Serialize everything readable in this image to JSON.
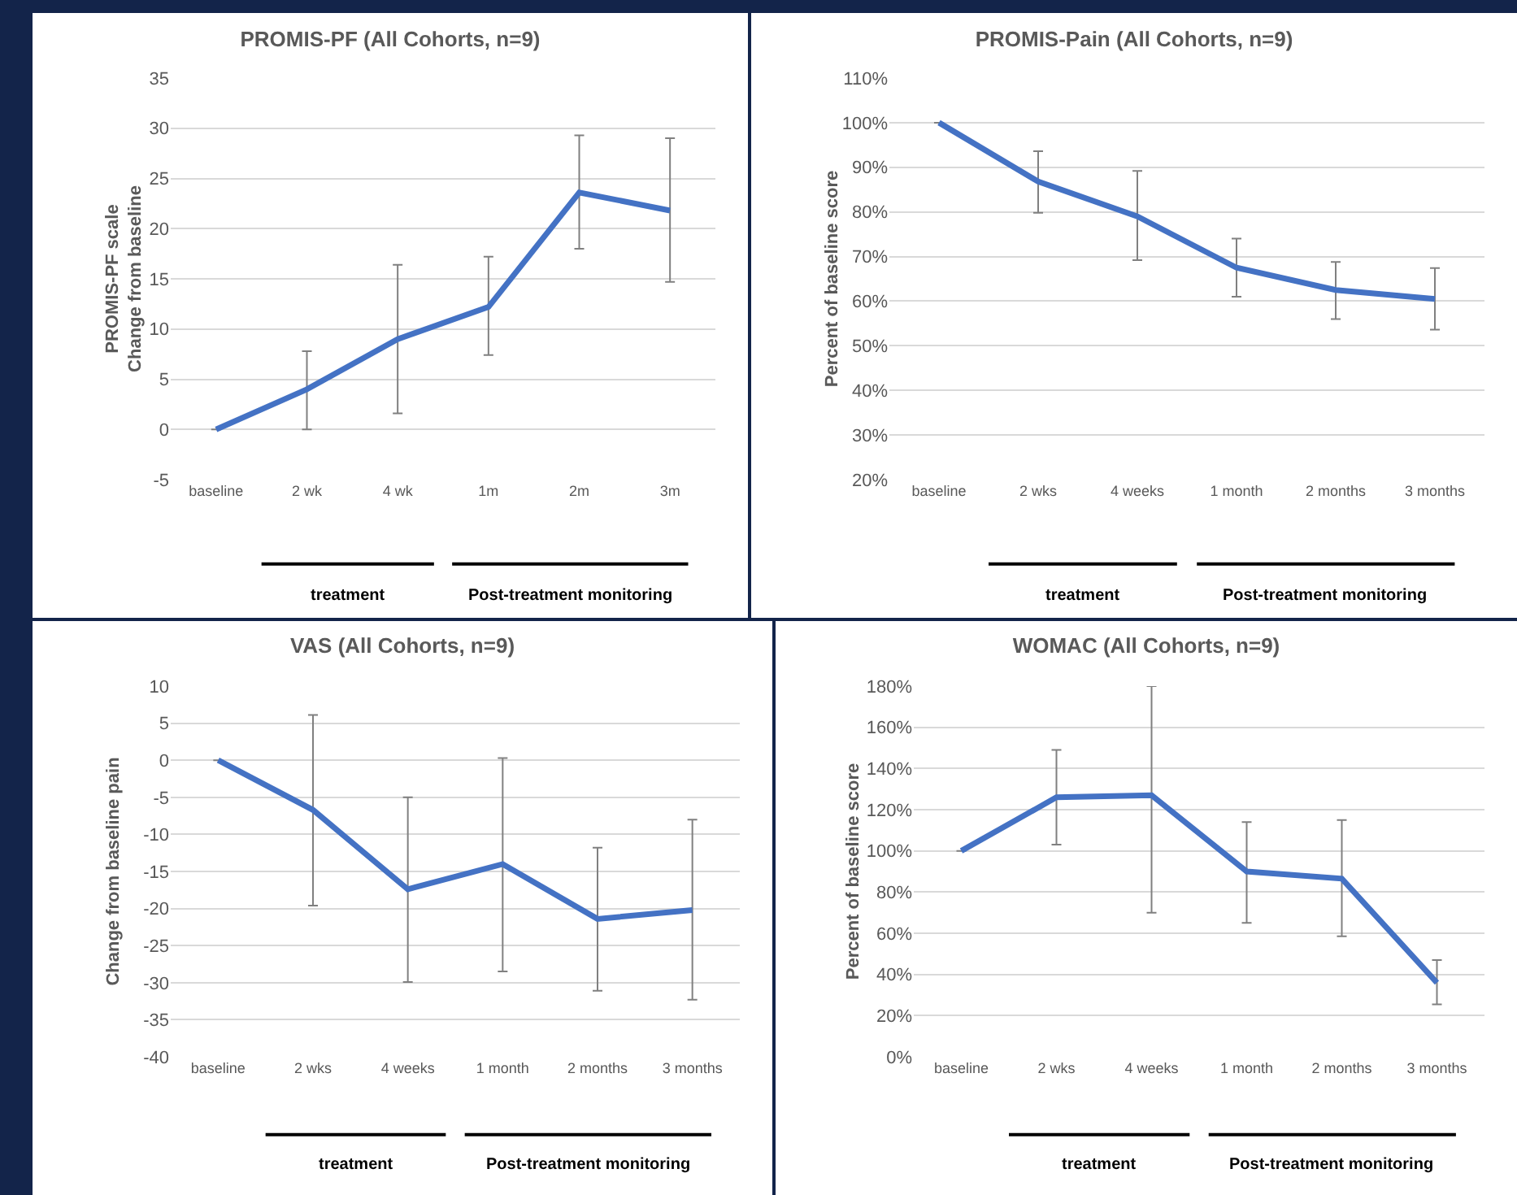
{
  "chart_data": [
    {
      "type": "line",
      "title": "PROMIS-PF (All Cohorts, n=9)",
      "ylabel": "PROMIS-PF scale\nChange from baseline",
      "categories": [
        "baseline",
        "2 wk",
        "4 wk",
        "1m",
        "2m",
        "3m"
      ],
      "series": [
        {
          "color": "#4472c4",
          "values": [
            0,
            4,
            9,
            12.2,
            23.6,
            21.8
          ],
          "errors": [
            null,
            [
              0,
              7.8
            ],
            [
              1.6,
              16.4
            ],
            [
              7.4,
              17.2
            ],
            [
              18,
              29.3
            ],
            [
              14.7,
              29
            ]
          ]
        }
      ],
      "ylim": [
        -5,
        35
      ],
      "yticks": [
        -5,
        0,
        5,
        10,
        15,
        20,
        25,
        30,
        35
      ],
      "grid": "y",
      "annotations": [
        "treatment",
        "Post-treatment monitoring"
      ]
    },
    {
      "type": "line",
      "title": "PROMIS-Pain (All Cohorts, n=9)",
      "ylabel": "Percent of baseline score",
      "categories": [
        "baseline",
        "2 wks",
        "4 weeks",
        "1 month",
        "2 months",
        "3 months"
      ],
      "series": [
        {
          "color": "#4472c4",
          "values": [
            100,
            86.8,
            79,
            67.5,
            62.5,
            60.5
          ],
          "errors": [
            null,
            [
              79.8,
              93.6
            ],
            [
              69.2,
              89.2
            ],
            [
              61,
              74
            ],
            [
              56,
              68.8
            ],
            [
              53.6,
              67.4
            ]
          ]
        }
      ],
      "ylim": [
        20,
        110
      ],
      "yticks": [
        {
          "value": 20,
          "label": "20%"
        },
        {
          "value": 30,
          "label": "30%"
        },
        {
          "value": 40,
          "label": "40%"
        },
        {
          "value": 50,
          "label": "50%"
        },
        {
          "value": 60,
          "label": "60%"
        },
        {
          "value": 70,
          "label": "70%"
        },
        {
          "value": 80,
          "label": "80%"
        },
        {
          "value": 90,
          "label": "90%"
        },
        {
          "value": 100,
          "label": "100%"
        },
        {
          "value": 110,
          "label": "110%"
        }
      ],
      "grid": "y",
      "annotations": [
        "treatment",
        "Post-treatment monitoring"
      ]
    },
    {
      "type": "line",
      "title": "VAS (All Cohorts, n=9)",
      "ylabel": "Change from baseline pain",
      "categories": [
        "baseline",
        "2 wks",
        "4 weeks",
        "1 month",
        "2 months",
        "3 months"
      ],
      "series": [
        {
          "color": "#4472c4",
          "values": [
            0,
            -6.7,
            -17.4,
            -14,
            -21.4,
            -20.2
          ],
          "errors": [
            null,
            [
              -19.6,
              6.1
            ],
            [
              -29.9,
              -5
            ],
            [
              -28.5,
              0.3
            ],
            [
              -31.1,
              -11.8
            ],
            [
              -32.3,
              -8
            ]
          ]
        }
      ],
      "ylim": [
        -40,
        10
      ],
      "yticks": [
        -40,
        -35,
        -30,
        -25,
        -20,
        -15,
        -10,
        -5,
        0,
        5,
        10
      ],
      "grid": "y",
      "annotations": [
        "treatment",
        "Post-treatment monitoring"
      ]
    },
    {
      "type": "line",
      "title": "WOMAC (All Cohorts, n=9)",
      "ylabel": "Percent of baseline score",
      "categories": [
        "baseline",
        "2 wks",
        "4 weeks",
        "1 month",
        "2 months",
        "3 months"
      ],
      "series": [
        {
          "color": "#4472c4",
          "values": [
            100,
            126,
            127,
            90,
            86.5,
            36
          ],
          "errors": [
            null,
            [
              103,
              149
            ],
            [
              70,
              180
            ],
            [
              65,
              114
            ],
            [
              58.5,
              115
            ],
            [
              25.5,
              47
            ]
          ]
        }
      ],
      "ylim": [
        0,
        180
      ],
      "yticks": [
        {
          "value": 0,
          "label": "0%"
        },
        {
          "value": 20,
          "label": "20%"
        },
        {
          "value": 40,
          "label": "40%"
        },
        {
          "value": 60,
          "label": "60%"
        },
        {
          "value": 80,
          "label": "80%"
        },
        {
          "value": 100,
          "label": "100%"
        },
        {
          "value": 120,
          "label": "120%"
        },
        {
          "value": 140,
          "label": "140%"
        },
        {
          "value": 160,
          "label": "160%"
        },
        {
          "value": 180,
          "label": "180%"
        }
      ],
      "grid": "y",
      "annotations": [
        "treatment",
        "Post-treatment monitoring"
      ]
    }
  ]
}
